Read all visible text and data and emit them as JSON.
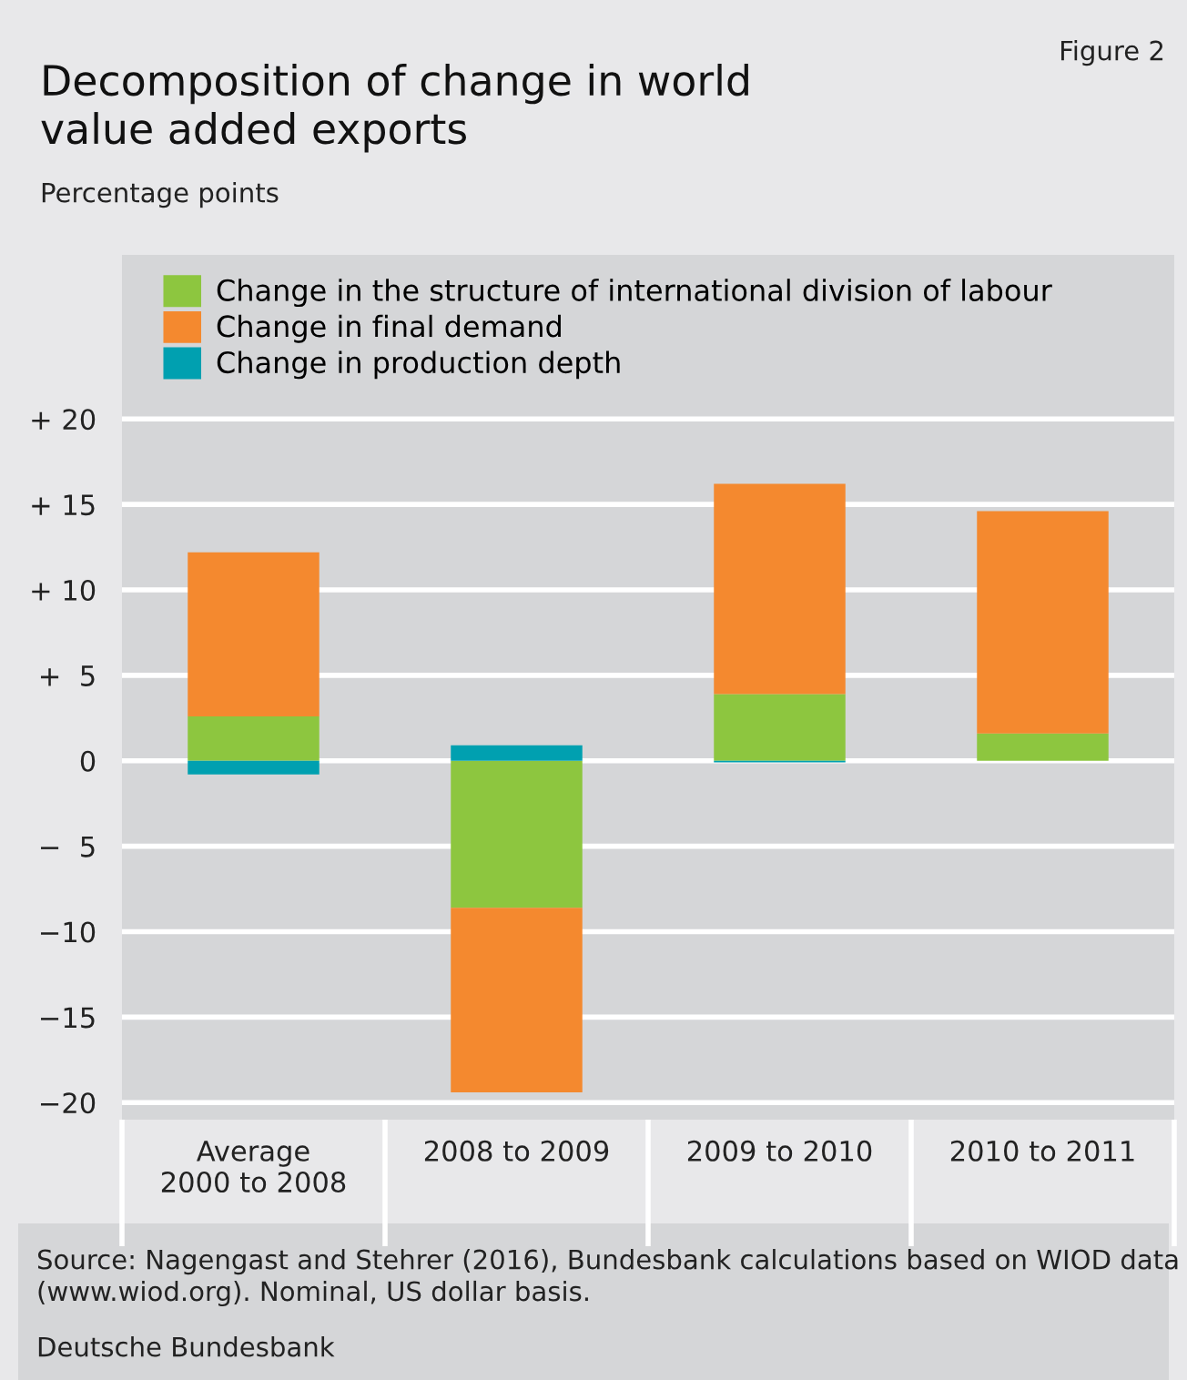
{
  "chart_data": {
    "type": "bar",
    "stacked": true,
    "title": "Decomposition of change in world\nvalue added exports",
    "subtitle": "Percentage points",
    "categories": [
      "Average\n2000 to 2008",
      "2008 to 2009",
      "2009 to 2010",
      "2010 to 2011"
    ],
    "series": [
      {
        "name": "Change in the structure of international division of labour",
        "color": "#8dc63f",
        "values": [
          2.6,
          -8.6,
          3.9,
          1.6
        ]
      },
      {
        "name": "Change in final demand",
        "color": "#f4892f",
        "values": [
          9.6,
          -10.8,
          12.3,
          13.0
        ]
      },
      {
        "name": "Change in production depth",
        "color": "#00a0b0",
        "values": [
          -0.8,
          0.9,
          -0.1,
          0
        ]
      }
    ],
    "ylim": [
      -21,
      29.6
    ],
    "yticks": [
      {
        "value": 20,
        "label": "+ 20"
      },
      {
        "value": 15,
        "label": "+ 15"
      },
      {
        "value": 10,
        "label": "+ 10"
      },
      {
        "value": 5,
        "label": "+  5"
      },
      0,
      {
        "value": -5,
        "label": "−  5"
      },
      {
        "value": -10,
        "label": "−10"
      },
      {
        "value": -15,
        "label": "−15"
      },
      {
        "value": -20,
        "label": "−20"
      }
    ],
    "grid": "y",
    "legend": "top left",
    "annotations": [
      "Figure 2",
      "Source: Nagengast and Stehrer (2016), Bundesbank calculations based on WIOD data (www.wiod.org). Nominal, US dollar basis.",
      "Deutsche Bundesbank"
    ]
  }
}
